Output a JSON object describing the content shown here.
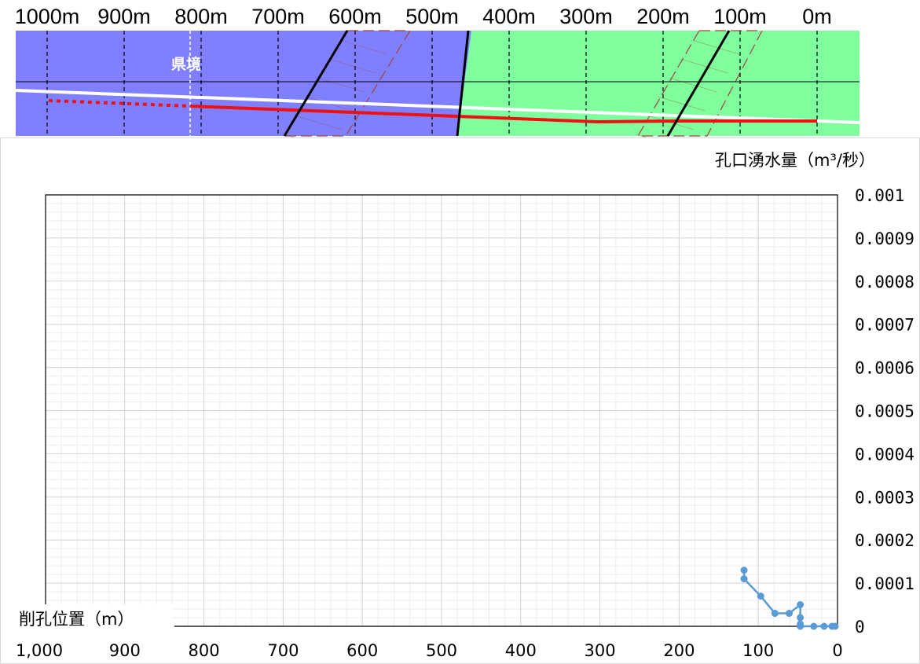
{
  "section": {
    "distance_labels": [
      "1000m",
      "900m",
      "800m",
      "700m",
      "600m",
      "500m",
      "400m",
      "300m",
      "200m",
      "100m",
      "0m"
    ],
    "border_label": "県境",
    "colors": {
      "left_zone": "#8080ff",
      "right_zone": "#80ff9f",
      "tunnel": "#ee1111",
      "ground_line": "#ffffff",
      "fault_line": "#000000",
      "fault_zone": "#a0443a"
    }
  },
  "chart_data": {
    "type": "line",
    "ylabel": "孔口湧水量（m³/秒）",
    "xlabel": "削孔位置（m）",
    "x_reversed": true,
    "xlim": [
      0,
      1000
    ],
    "ylim": [
      0,
      0.001
    ],
    "x_ticks": [
      1000,
      900,
      800,
      700,
      600,
      500,
      400,
      300,
      200,
      100,
      0
    ],
    "x_tick_labels": [
      "1,000",
      "900",
      "800",
      "700",
      "600",
      "500",
      "400",
      "300",
      "200",
      "100",
      "0"
    ],
    "y_ticks": [
      0,
      0.0001,
      0.0002,
      0.0003,
      0.0004,
      0.0005,
      0.0006,
      0.0007,
      0.0008,
      0.0009,
      0.001
    ],
    "y_tick_labels": [
      "0",
      "0.0001",
      "0.0002",
      "0.0003",
      "0.0004",
      "0.0005",
      "0.0006",
      "0.0007",
      "0.0008",
      "0.0009",
      "0.001"
    ],
    "grid": true,
    "series": [
      {
        "color": "#5b9bd5",
        "x": [
          118,
          118,
          97,
          79,
          61,
          47,
          47,
          47,
          47,
          30,
          17,
          7,
          3
        ],
        "y": [
          0.00013,
          0.00011,
          7e-05,
          3e-05,
          3e-05,
          5e-05,
          2e-05,
          5e-06,
          0,
          0,
          0,
          0,
          0
        ]
      }
    ]
  }
}
